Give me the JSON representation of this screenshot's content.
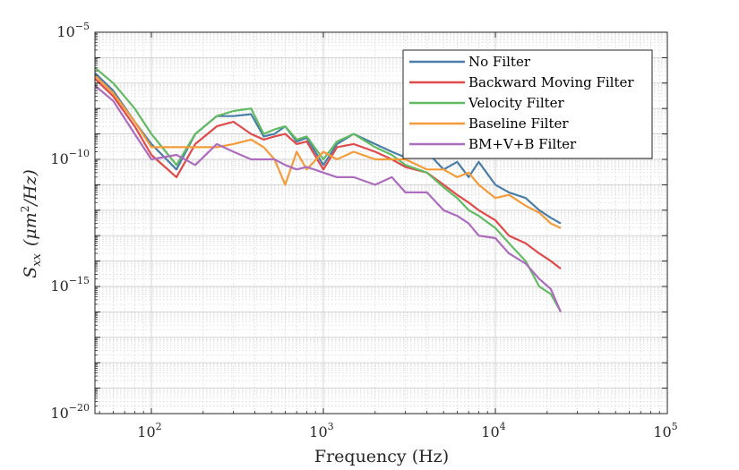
{
  "chart_data": {
    "type": "line",
    "xscale": "log",
    "yscale": "log",
    "xlim": [
      47,
      100000
    ],
    "ylim": [
      1e-20,
      1e-05
    ],
    "xlabel": "Frequency (Hz)",
    "ylabel_main": "S",
    "ylabel_sub": "xx",
    "ylabel_units": "(μm",
    "ylabel_units_exp": "2",
    "ylabel_units_tail": "/Hz)",
    "x_ticks": [
      {
        "value": 100,
        "base": "10",
        "exp": "2"
      },
      {
        "value": 1000,
        "base": "10",
        "exp": "3"
      },
      {
        "value": 10000,
        "base": "10",
        "exp": "4"
      },
      {
        "value": 100000,
        "base": "10",
        "exp": "5"
      }
    ],
    "y_ticks": [
      {
        "value": 1e-05,
        "base": "10",
        "exp": "−5"
      },
      {
        "value": 1e-10,
        "base": "10",
        "exp": "−10"
      },
      {
        "value": 1e-15,
        "base": "10",
        "exp": "−15"
      },
      {
        "value": 1e-20,
        "base": "10",
        "exp": "−20"
      }
    ],
    "grid": true,
    "minor_grid": true,
    "legend_position": "top-right",
    "series": [
      {
        "name": "No Filter",
        "color": "#4a7ea8",
        "x": [
          47,
          60,
          80,
          100,
          140,
          180,
          240,
          300,
          380,
          450,
          520,
          600,
          700,
          800,
          1000,
          1200,
          1500,
          2000,
          2500,
          3000,
          4000,
          5000,
          6000,
          7000,
          8000,
          10000,
          12000,
          15000,
          18000,
          21000,
          24000
        ],
        "y": [
          2.5e-07,
          5e-08,
          3e-09,
          4e-10,
          4e-11,
          1e-09,
          5e-09,
          5e-09,
          6e-09,
          8e-10,
          1e-09,
          2e-09,
          5e-10,
          7e-10,
          6e-11,
          4e-10,
          1e-09,
          4e-10,
          2e-10,
          1.2e-10,
          2e-10,
          4e-11,
          8e-11,
          2e-11,
          8e-11,
          1e-11,
          5e-12,
          3e-12,
          1e-12,
          5e-13,
          3e-13
        ]
      },
      {
        "name": "Backward Moving Filter",
        "color": "#e04a4a",
        "x": [
          47,
          60,
          80,
          100,
          140,
          180,
          240,
          300,
          380,
          450,
          520,
          600,
          700,
          800,
          1000,
          1200,
          1500,
          2000,
          2500,
          3000,
          4000,
          5000,
          6000,
          7000,
          8000,
          10000,
          12000,
          15000,
          18000,
          21000,
          24000
        ],
        "y": [
          1.5e-07,
          3e-08,
          2e-09,
          1.5e-10,
          2e-11,
          4e-10,
          2e-09,
          3e-09,
          1e-09,
          6e-10,
          8e-10,
          1e-09,
          4e-10,
          5e-10,
          4e-11,
          3e-10,
          4e-10,
          2e-10,
          1e-10,
          5e-11,
          3e-11,
          1e-11,
          4e-12,
          2e-12,
          1e-12,
          4e-13,
          1e-13,
          5e-14,
          2e-14,
          1e-14,
          5e-15
        ]
      },
      {
        "name": "Velocity Filter",
        "color": "#62bb62",
        "x": [
          47,
          60,
          80,
          100,
          140,
          180,
          240,
          300,
          380,
          450,
          520,
          600,
          700,
          800,
          1000,
          1200,
          1500,
          2000,
          2500,
          3000,
          4000,
          5000,
          6000,
          7000,
          8000,
          10000,
          12000,
          15000,
          18000,
          21000,
          24000
        ],
        "y": [
          4e-07,
          1e-07,
          1e-08,
          1e-09,
          6e-11,
          1e-09,
          5e-09,
          8e-09,
          1e-08,
          1e-09,
          1.5e-09,
          2e-09,
          6e-10,
          8e-10,
          1e-10,
          5e-10,
          1e-09,
          3e-10,
          1.5e-10,
          6e-11,
          3e-11,
          8e-12,
          3e-12,
          1e-12,
          6e-13,
          2e-13,
          5e-14,
          1e-14,
          1e-15,
          5e-16,
          1e-16
        ]
      },
      {
        "name": "Baseline Filter",
        "color": "#f49b3a",
        "x": [
          47,
          60,
          80,
          100,
          140,
          180,
          240,
          300,
          380,
          450,
          520,
          600,
          700,
          800,
          1000,
          1200,
          1500,
          2000,
          2500,
          3000,
          4000,
          5000,
          6000,
          7000,
          8000,
          10000,
          12000,
          15000,
          18000,
          21000,
          24000
        ],
        "y": [
          2e-07,
          4e-08,
          3e-09,
          3e-10,
          3e-10,
          3e-10,
          3e-10,
          4e-10,
          6e-10,
          3e-10,
          1e-10,
          1e-11,
          2e-10,
          4e-11,
          2e-10,
          1e-10,
          2e-10,
          1e-10,
          1e-10,
          1e-10,
          4e-11,
          4e-11,
          2e-11,
          3e-11,
          1e-11,
          3e-12,
          4e-12,
          1.5e-12,
          8e-13,
          3e-13,
          2e-13
        ]
      },
      {
        "name": "BM+V+B Filter",
        "color": "#ad6cbd",
        "x": [
          47,
          60,
          80,
          100,
          140,
          180,
          240,
          300,
          380,
          450,
          520,
          600,
          700,
          800,
          1000,
          1200,
          1500,
          2000,
          2500,
          3000,
          4000,
          5000,
          6000,
          7000,
          8000,
          10000,
          12000,
          15000,
          18000,
          21000,
          24000
        ],
        "y": [
          8e-08,
          2e-08,
          1e-09,
          1e-10,
          1.5e-10,
          6e-11,
          4e-10,
          2e-10,
          1e-10,
          1e-10,
          1e-10,
          6e-11,
          4e-11,
          5e-11,
          3e-11,
          2e-11,
          2e-11,
          1e-11,
          2e-11,
          5e-12,
          5e-12,
          1e-12,
          6e-13,
          3e-13,
          1e-13,
          8e-14,
          2e-14,
          8e-15,
          2e-15,
          8e-16,
          1e-16
        ]
      }
    ]
  }
}
